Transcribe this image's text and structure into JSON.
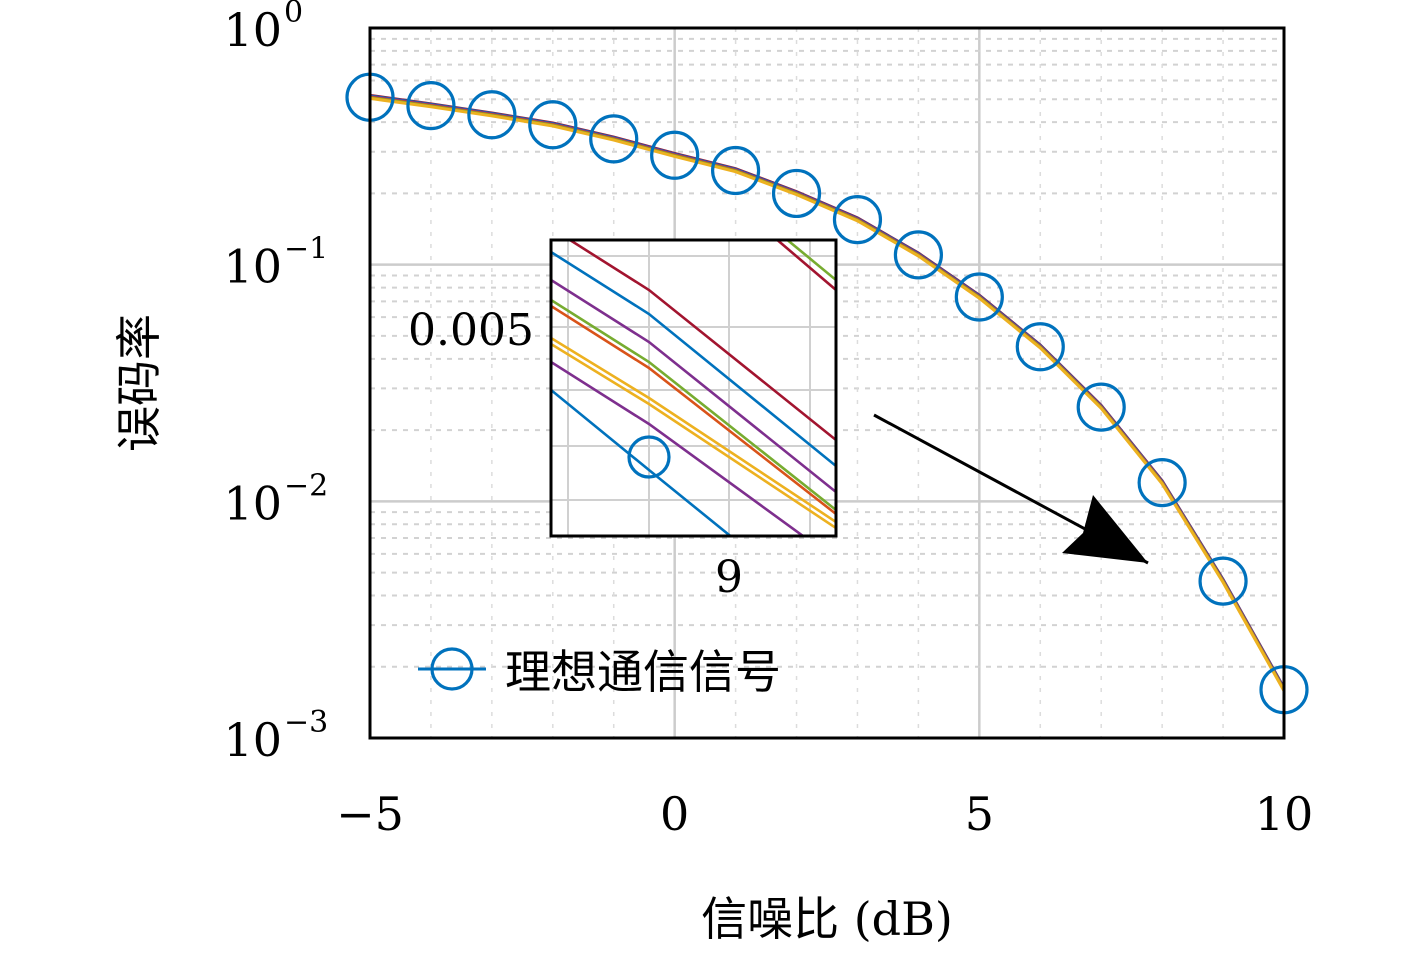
{
  "chart_data": {
    "type": "line",
    "xlabel": "信噪比 (dB)",
    "ylabel": "误码率",
    "yscale": "log",
    "xlim": [
      -5,
      10
    ],
    "ylim": [
      0.001,
      1
    ],
    "xticks": [
      -5,
      0,
      5,
      10
    ],
    "xtick_labels": [
      "−5",
      "0",
      "5",
      "10"
    ],
    "yticks": [
      1,
      0.1,
      0.01,
      0.001
    ],
    "ytick_labels": [
      {
        "base": "10",
        "exp": "0"
      },
      {
        "base": "10",
        "exp": "−1"
      },
      {
        "base": "10",
        "exp": "−2"
      },
      {
        "base": "10",
        "exp": "−3"
      }
    ],
    "grid": true,
    "legend_position": "bottom-left",
    "series": [
      {
        "name": "理想通信信号",
        "color": "#0072bd",
        "marker": "circle",
        "x": [
          -5,
          -4,
          -3,
          -2,
          -1,
          0,
          1,
          2,
          3,
          4,
          5,
          6,
          7,
          8,
          9,
          10
        ],
        "y": [
          0.51,
          0.47,
          0.43,
          0.39,
          0.34,
          0.29,
          0.25,
          0.2,
          0.155,
          0.11,
          0.073,
          0.045,
          0.025,
          0.012,
          0.0046,
          0.0016
        ]
      }
    ],
    "curves": {
      "colors": [
        "#a2142f",
        "#0072bd",
        "#7e2f8e",
        "#d95319",
        "#77ac30",
        "#edb120"
      ],
      "x": [
        -5,
        -4,
        -3,
        -2,
        -1,
        0,
        1,
        2,
        3,
        4,
        5,
        6,
        7,
        8,
        9,
        10
      ],
      "y": [
        0.51,
        0.47,
        0.43,
        0.39,
        0.34,
        0.29,
        0.25,
        0.2,
        0.155,
        0.11,
        0.073,
        0.045,
        0.025,
        0.012,
        0.0046,
        0.0016
      ]
    },
    "inset": {
      "xtick_label": "9",
      "ytick_label": "0.005",
      "marker_point": {
        "x": 9,
        "y": 0.0046
      }
    }
  }
}
